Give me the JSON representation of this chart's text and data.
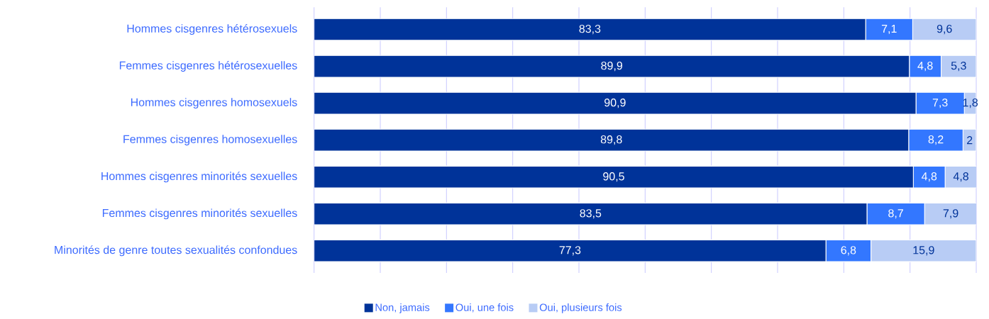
{
  "chart_data": {
    "type": "bar",
    "orientation": "horizontal",
    "stacked": true,
    "categories": [
      "Hommes cisgenres hétérosexuels",
      "Femmes cisgenres hétérosexuelles",
      "Hommes cisgenres homosexuels",
      "Femmes cisgenres homosexuelles",
      "Hommes cisgenres minorités sexuelles",
      "Femmes cisgenres minorités sexuelles",
      "Minorités de genre toutes sexualités confondues"
    ],
    "series": [
      {
        "name": "Non, jamais",
        "color": "#003399",
        "values": [
          83.3,
          89.9,
          90.9,
          89.8,
          90.5,
          83.5,
          77.3
        ],
        "value_labels": [
          "83,3",
          "89,9",
          "90,9",
          "89,8",
          "90,5",
          "83,5",
          "77,3"
        ]
      },
      {
        "name": "Oui, une fois",
        "color": "#3377ff",
        "values": [
          7.1,
          4.8,
          7.3,
          8.2,
          4.8,
          8.7,
          6.8
        ],
        "value_labels": [
          "7,1",
          "4,8",
          "7,3",
          "8,2",
          "4,8",
          "8,7",
          "6,8"
        ]
      },
      {
        "name": "Oui, plusieurs fois",
        "color": "#b8ccf5",
        "values": [
          9.6,
          5.3,
          1.8,
          2,
          4.8,
          7.9,
          15.9
        ],
        "value_labels": [
          "9,6",
          "5,3",
          "1,8",
          "2",
          "4,8",
          "7,9",
          "15,9"
        ]
      }
    ],
    "xlim": [
      0,
      100
    ],
    "xticks": [
      0,
      10,
      20,
      30,
      40,
      50,
      60,
      70,
      80,
      90,
      100
    ],
    "tick_labels": "y",
    "grid": "x",
    "legend": "bottom"
  }
}
